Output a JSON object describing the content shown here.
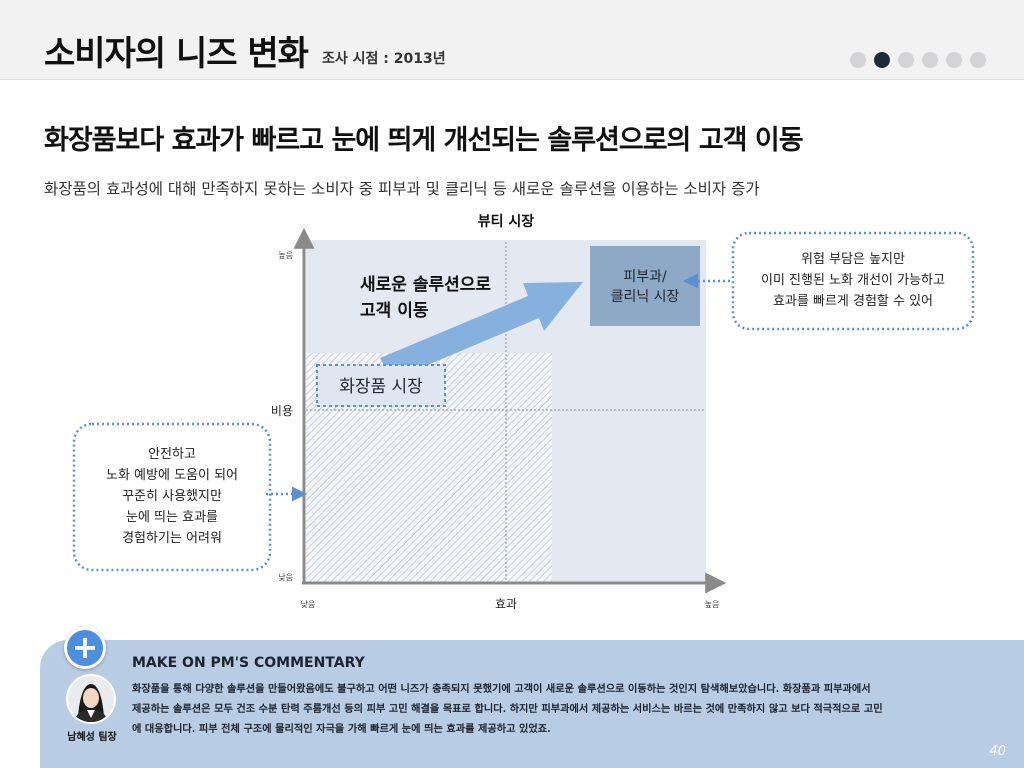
{
  "header": {
    "title": "소비자의 니즈 변화",
    "survey_date": "조사 시점 : 2013년",
    "pager_total": 6,
    "pager_active": 1
  },
  "headline": "화장품보다 효과가 빠르고 눈에 띄게 개선되는 솔루션으로의 고객 이동",
  "subline": "화장품의 효과성에 대해 만족하지 못하는 소비자 중 피부과 및 클리닉 등 새로운 솔루션을 이용하는 소비자 증가",
  "diagram": {
    "top_label": "뷰티 시장",
    "y_axis": {
      "name": "비용",
      "high": "높음",
      "low": "낮음"
    },
    "x_axis": {
      "name": "효과",
      "low": "낮음",
      "high": "높음"
    },
    "derm_box": [
      "피부과/",
      "클리닉 시장"
    ],
    "cosmetic_label": "화장품 시장",
    "move_label": [
      "새로운 솔루션으로",
      "고객 이동"
    ],
    "right_callout": [
      "위험 부담은 높지만",
      "이미 진행된 노화 개선이 가능하고",
      "효과를 빠르게 경험할 수 있어"
    ],
    "left_callout": [
      "안전하고",
      "노화 예방에 도움이 되어",
      "꾸준히 사용했지만",
      "눈에 띄는 효과를",
      "경험하기는 어려워"
    ],
    "colors": {
      "quadrant": "#e4e9f1",
      "derm": "#8ea9c6",
      "arrow": "#86b0de",
      "dotted": "#5a8fd2",
      "axis": "#8a8a8a"
    }
  },
  "commentary": {
    "title": "MAKE ON PM'S COMMENTARY",
    "lines": [
      "화장품을 통해 다양한 솔루션을 만들어왔음에도 불구하고 어떤 니즈가 충족되지 못했기에 고객이 새로운 솔루션으로 이동하는 것인지 탐색해보았습니다. 화장품과 피부과에서",
      "제공하는 솔루션은 모두 건조 수분 탄력 주름개선 등의 피부 고민 해결을 목표로 합니다. 하지만 피부과에서 제공하는 서비스는 바르는 것에 만족하지 않고 보다 적극적으로 고민",
      "에 대응합니다. 피부 전체 구조에 물리적인 자극을 가해 빠르게 눈에 띄는 효과를 제공하고 있었죠."
    ],
    "author": "남혜성 팀장",
    "plus_icon": "plus-icon"
  },
  "page_number": "40"
}
